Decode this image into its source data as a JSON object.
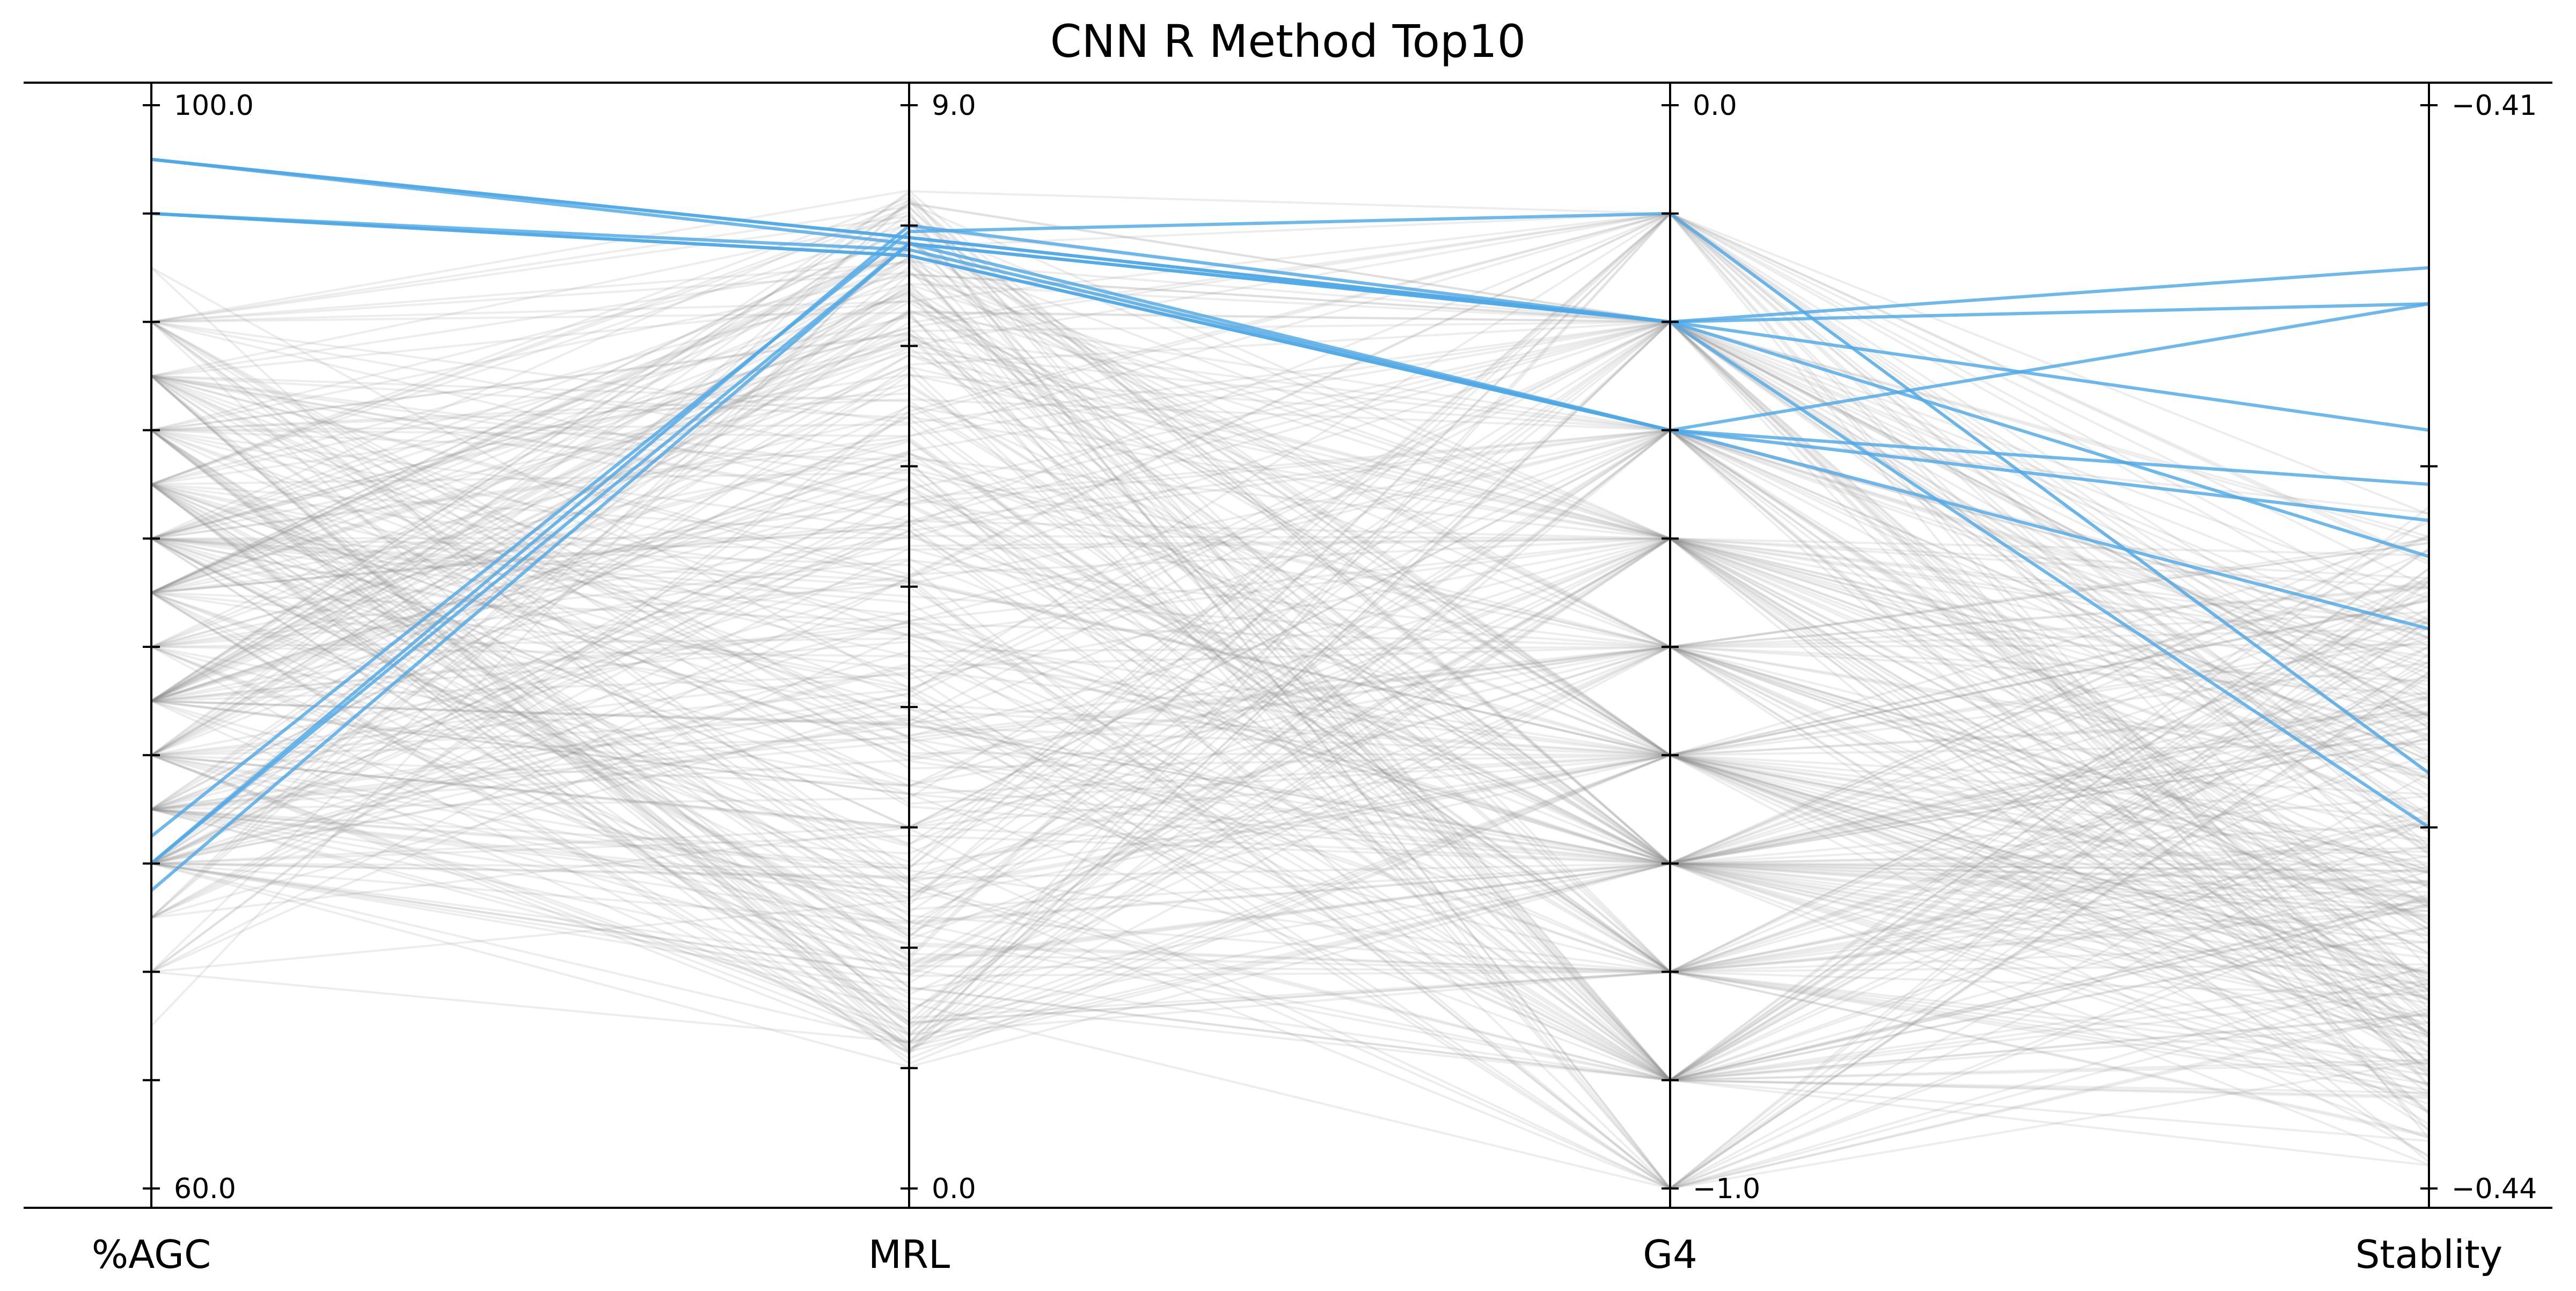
{
  "colors": {
    "highlight": "#4ea8e6",
    "background_line": "#8f8f8f"
  },
  "chart_data": {
    "type": "parallel-coordinates",
    "title": "CNN R Method Top10",
    "axes": [
      {
        "name": "%AGC",
        "min": 60.0,
        "max": 100.0,
        "min_label": "60.0",
        "max_label": "100.0",
        "minor_ticks": [
          64,
          68,
          72,
          76,
          80,
          84,
          88,
          92,
          96
        ]
      },
      {
        "name": "MRL",
        "min": 0.0,
        "max": 9.0,
        "min_label": "0.0",
        "max_label": "9.0",
        "minor_ticks": [
          1,
          2,
          3,
          4,
          5,
          6,
          7,
          8
        ]
      },
      {
        "name": "G4",
        "min": -1.0,
        "max": 0.0,
        "min_label": "−1.0",
        "max_label": "0.0",
        "minor_ticks": [
          -0.9,
          -0.8,
          -0.7,
          -0.6,
          -0.5,
          -0.4,
          -0.3,
          -0.2,
          -0.1
        ]
      },
      {
        "name": "Stablity",
        "min": -0.44,
        "max": -0.41,
        "min_label": "−0.44",
        "max_label": "−0.41",
        "minor_ticks": [
          -0.43,
          -0.42
        ]
      }
    ],
    "top10": [
      [
        98.0,
        7.9,
        -0.2,
        -0.4145
      ],
      [
        98.0,
        7.85,
        -0.2,
        -0.4225
      ],
      [
        98.0,
        7.9,
        -0.2,
        -0.4155
      ],
      [
        96.0,
        7.8,
        -0.3,
        -0.4245
      ],
      [
        96.0,
        7.75,
        -0.3,
        -0.4215
      ],
      [
        96.0,
        7.75,
        -0.3,
        -0.4205
      ],
      [
        71.0,
        7.85,
        -0.3,
        -0.4155
      ],
      [
        72.0,
        7.85,
        -0.2,
        -0.419
      ],
      [
        73.0,
        7.95,
        -0.1,
        -0.4285
      ],
      [
        72.0,
        8.0,
        -0.2,
        -0.43
      ]
    ],
    "background_series_count": 320,
    "background_note": "remaining candidates drawn as faint grey lines",
    "grid": false
  }
}
